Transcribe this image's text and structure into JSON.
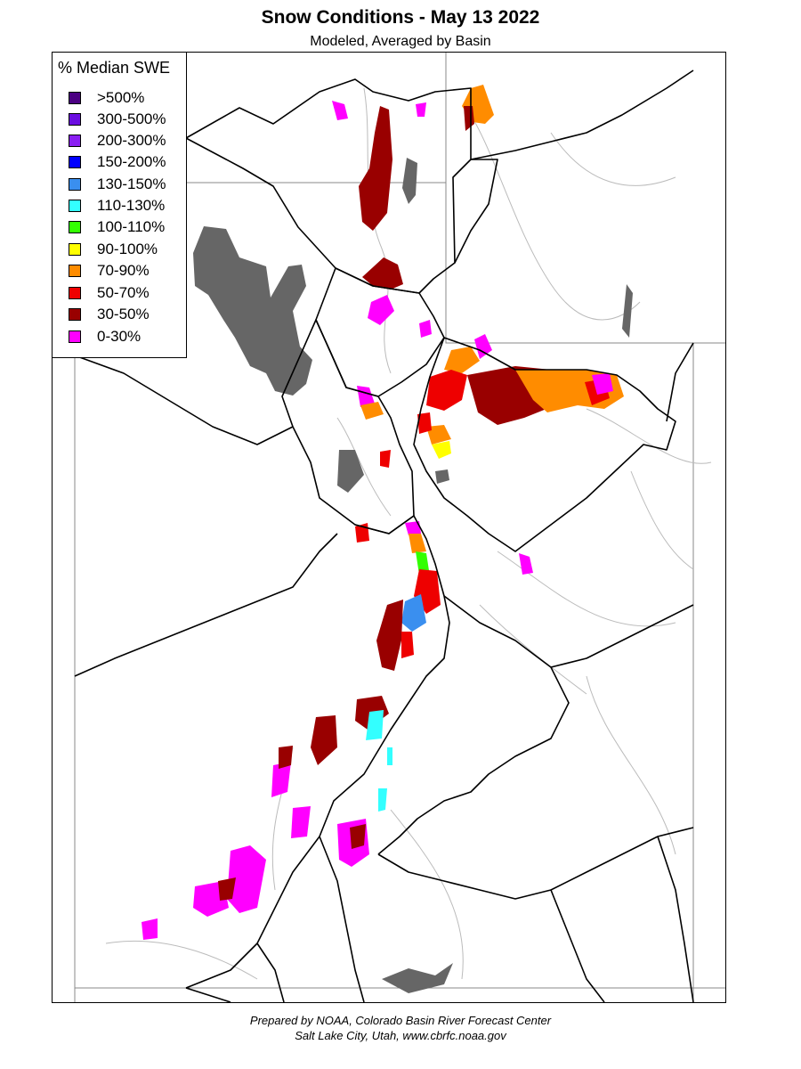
{
  "header": {
    "title": "Snow Conditions - May 13 2022",
    "subtitle": "Modeled, Averaged by Basin"
  },
  "legend": {
    "title": "% Median SWE",
    "items": [
      {
        "label": ">500%",
        "color": "#4b0082"
      },
      {
        "label": "300-500%",
        "color": "#6a0de0"
      },
      {
        "label": "200-300%",
        "color": "#8a1ff2"
      },
      {
        "label": "150-200%",
        "color": "#0000ff"
      },
      {
        "label": "130-150%",
        "color": "#3a8fef"
      },
      {
        "label": "110-130%",
        "color": "#33ffff"
      },
      {
        "label": "100-110%",
        "color": "#33ff00"
      },
      {
        "label": "90-100%",
        "color": "#ffff00"
      },
      {
        "label": "70-90%",
        "color": "#ff8c00"
      },
      {
        "label": "50-70%",
        "color": "#ee0000"
      },
      {
        "label": "30-50%",
        "color": "#990000"
      },
      {
        "label": "0-30%",
        "color": "#ff00ff"
      }
    ]
  },
  "map": {
    "water_color": "#666666",
    "river_color": "#bbbbbb",
    "boundary_color": "#000000"
  },
  "footer": {
    "line1": "Prepared by NOAA, Colorado Basin River Forecast Center",
    "line2": "Salt Lake City, Utah, www.cbrfc.noaa.gov"
  }
}
